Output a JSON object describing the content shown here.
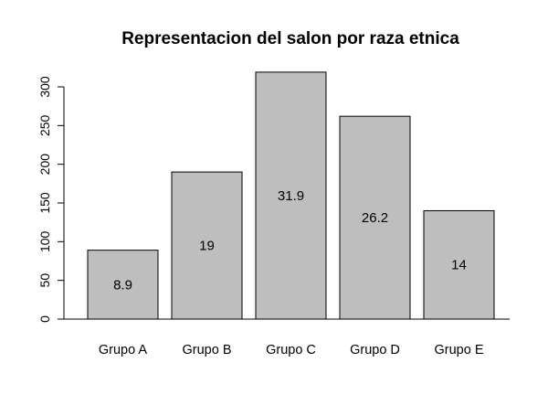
{
  "chart_data": {
    "type": "bar",
    "title": "Representacion del salon por raza etnica",
    "xlabel": "",
    "ylabel": "",
    "categories": [
      "Grupo A",
      "Grupo B",
      "Grupo C",
      "Grupo D",
      "Grupo E"
    ],
    "values": [
      89,
      190,
      319,
      262,
      140
    ],
    "data_labels": [
      "8.9",
      "19",
      "31.9",
      "26.2",
      "14"
    ],
    "ylim": [
      0,
      320
    ],
    "y_ticks": [
      0,
      50,
      100,
      150,
      200,
      250,
      300
    ],
    "bar_color": "#bebebe",
    "bar_border_color": "#000000",
    "grid": false,
    "legend": "none"
  }
}
